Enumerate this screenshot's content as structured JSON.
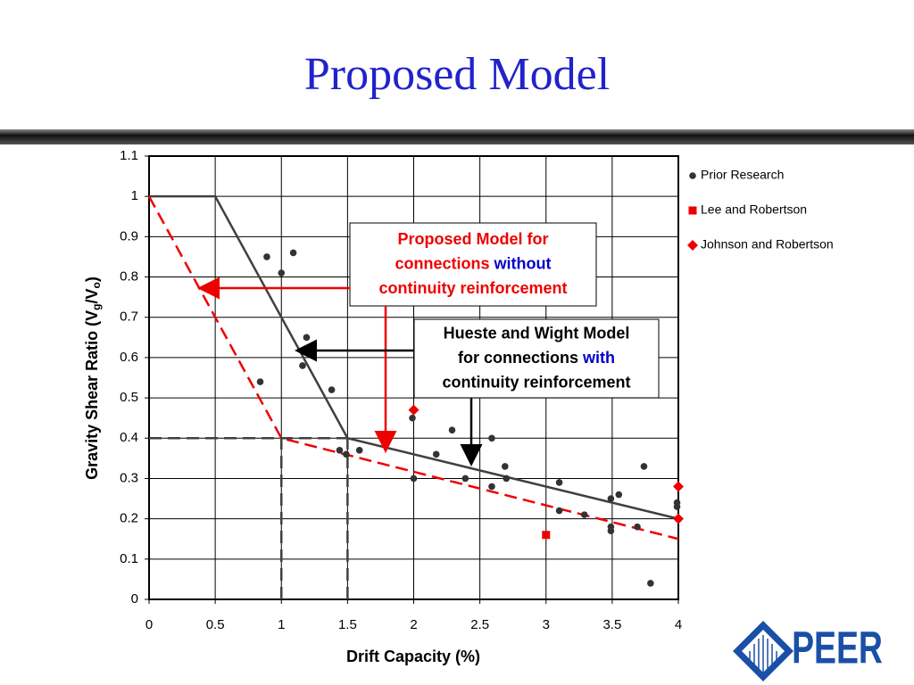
{
  "title": "Proposed Model",
  "logo": "PEER",
  "chart_data": {
    "type": "scatter",
    "xlabel": "Drift Capacity (%)",
    "ylabel": [
      {
        "text": "Gravity Shear Ratio (V"
      },
      {
        "text": "g",
        "sub": true
      },
      {
        "text": "/V"
      },
      {
        "text": "o",
        "sub": true
      },
      {
        "text": ")"
      }
    ],
    "xlim": [
      0,
      4
    ],
    "ylim": [
      0,
      1.1
    ],
    "xticks": [
      0,
      0.5,
      1,
      1.5,
      2,
      2.5,
      3,
      3.5,
      4
    ],
    "yticks": [
      0,
      0.1,
      0.2,
      0.3,
      0.4,
      0.5,
      0.6,
      0.7,
      0.8,
      0.9,
      1,
      1.1
    ],
    "grid": true,
    "legend": "right",
    "series": [
      {
        "name": "Prior Research",
        "type": "scatter",
        "marker": "circle",
        "color": "#333333",
        "x": [
          0.89,
          1.0,
          1.09,
          1.19,
          1.16,
          0.84,
          1.38,
          1.44,
          1.49,
          1.59,
          1.99,
          2.0,
          2.17,
          2.29,
          2.39,
          2.59,
          2.59,
          2.69,
          2.7,
          3.1,
          3.1,
          3.29,
          3.49,
          3.55,
          3.49,
          3.49,
          3.69,
          3.74,
          3.79,
          3.99,
          3.99
        ],
        "values": [
          0.85,
          0.81,
          0.86,
          0.65,
          0.58,
          0.54,
          0.52,
          0.37,
          0.36,
          0.37,
          0.45,
          0.3,
          0.36,
          0.42,
          0.3,
          0.4,
          0.28,
          0.33,
          0.3,
          0.29,
          0.22,
          0.21,
          0.25,
          0.26,
          0.18,
          0.17,
          0.18,
          0.33,
          0.04,
          0.24,
          0.23
        ]
      },
      {
        "name": "Lee and Robertson",
        "type": "scatter",
        "marker": "square",
        "color": "#ee0000",
        "x": [
          3.0
        ],
        "values": [
          0.16
        ]
      },
      {
        "name": "Johnson and Robertson",
        "type": "scatter",
        "marker": "diamond",
        "color": "#ee0000",
        "x": [
          2.0,
          4.0,
          4.0
        ],
        "values": [
          0.47,
          0.28,
          0.2
        ]
      },
      {
        "type": "line",
        "color": "#404040",
        "dash": false,
        "x": [
          0,
          0.5,
          1.5,
          4
        ],
        "values": [
          1,
          1,
          0.4,
          0.2
        ]
      },
      {
        "type": "line",
        "color": "#ee0000",
        "dash": true,
        "x": [
          0,
          1,
          4
        ],
        "values": [
          1,
          0.4,
          0.15
        ]
      },
      {
        "type": "line",
        "color": "#404040",
        "dash": true,
        "x": [
          0,
          1.5
        ],
        "values": [
          0.4,
          0.4
        ]
      },
      {
        "type": "line",
        "color": "#404040",
        "dash": true,
        "x": [
          1,
          1
        ],
        "values": [
          0,
          0.4
        ]
      },
      {
        "type": "line",
        "color": "#404040",
        "dash": true,
        "x": [
          1.5,
          1.5
        ],
        "values": [
          0,
          0.4
        ]
      }
    ],
    "annotations": [
      {
        "lines": [
          [
            {
              "text": "Proposed Model for",
              "color": "#ee0000"
            }
          ],
          [
            {
              "text": "connections ",
              "color": "#ee0000"
            },
            {
              "text": "without",
              "color": "#0000cc"
            }
          ],
          [
            {
              "text": "continuity reinforcement",
              "color": "#ee0000"
            }
          ]
        ]
      },
      {
        "lines": [
          [
            {
              "text": "Hueste and Wight Model",
              "color": "#000000"
            }
          ],
          [
            {
              "text": "for connections ",
              "color": "#000000"
            },
            {
              "text": "with",
              "color": "#0000cc"
            }
          ],
          [
            {
              "text": "continuity reinforcement",
              "color": "#000000"
            }
          ]
        ]
      }
    ]
  }
}
